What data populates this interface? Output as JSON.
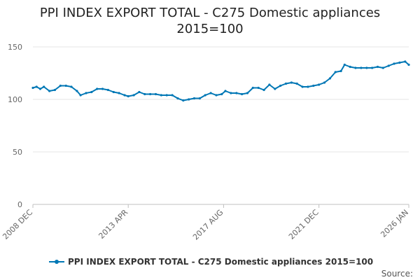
{
  "chart_data": {
    "type": "line",
    "title_lines": [
      "PPI INDEX EXPORT TOTAL - C275 Domestic appliances",
      "2015=100"
    ],
    "xlabel": "",
    "ylabel": "",
    "ylim": [
      0,
      150
    ],
    "yticks": [
      0,
      50,
      100,
      150
    ],
    "xlim": [
      "2008-12",
      "2026-01"
    ],
    "xticks": [
      {
        "date": "2008-12",
        "label": "2008 DEC"
      },
      {
        "date": "2013-04",
        "label": "2013 APR"
      },
      {
        "date": "2017-08",
        "label": "2017 AUG"
      },
      {
        "date": "2021-12",
        "label": "2021 DEC"
      },
      {
        "date": "2026-01",
        "label": "2026 JAN"
      }
    ],
    "grid": true,
    "legend_position": "bottom",
    "series": [
      {
        "name": "PPI INDEX EXPORT TOTAL - C275 Domestic appliances 2015=100",
        "color": "#0077b5",
        "points": [
          [
            "2008-12",
            111
          ],
          [
            "2009-02",
            112
          ],
          [
            "2009-04",
            110
          ],
          [
            "2009-06",
            112
          ],
          [
            "2009-09",
            108
          ],
          [
            "2009-12",
            109
          ],
          [
            "2010-03",
            113
          ],
          [
            "2010-06",
            113
          ],
          [
            "2010-09",
            112
          ],
          [
            "2010-12",
            108
          ],
          [
            "2011-02",
            104
          ],
          [
            "2011-05",
            106
          ],
          [
            "2011-08",
            107
          ],
          [
            "2011-11",
            110
          ],
          [
            "2012-02",
            110
          ],
          [
            "2012-05",
            109
          ],
          [
            "2012-08",
            107
          ],
          [
            "2012-11",
            106
          ],
          [
            "2013-02",
            104
          ],
          [
            "2013-04",
            103
          ],
          [
            "2013-07",
            104
          ],
          [
            "2013-10",
            107
          ],
          [
            "2014-01",
            105
          ],
          [
            "2014-04",
            105
          ],
          [
            "2014-07",
            105
          ],
          [
            "2014-10",
            104
          ],
          [
            "2015-01",
            104
          ],
          [
            "2015-04",
            104
          ],
          [
            "2015-07",
            101
          ],
          [
            "2015-10",
            99
          ],
          [
            "2016-01",
            100
          ],
          [
            "2016-04",
            101
          ],
          [
            "2016-07",
            101
          ],
          [
            "2016-10",
            104
          ],
          [
            "2017-01",
            106
          ],
          [
            "2017-04",
            104
          ],
          [
            "2017-07",
            105
          ],
          [
            "2017-09",
            108
          ],
          [
            "2017-12",
            106
          ],
          [
            "2018-03",
            106
          ],
          [
            "2018-06",
            105
          ],
          [
            "2018-09",
            106
          ],
          [
            "2018-12",
            111
          ],
          [
            "2019-03",
            111
          ],
          [
            "2019-06",
            109
          ],
          [
            "2019-09",
            114
          ],
          [
            "2019-12",
            110
          ],
          [
            "2020-03",
            113
          ],
          [
            "2020-06",
            115
          ],
          [
            "2020-09",
            116
          ],
          [
            "2020-12",
            115
          ],
          [
            "2021-03",
            112
          ],
          [
            "2021-06",
            112
          ],
          [
            "2021-09",
            113
          ],
          [
            "2021-12",
            114
          ],
          [
            "2022-03",
            116
          ],
          [
            "2022-06",
            120
          ],
          [
            "2022-09",
            126
          ],
          [
            "2022-12",
            127
          ],
          [
            "2023-02",
            133
          ],
          [
            "2023-05",
            131
          ],
          [
            "2023-08",
            130
          ],
          [
            "2023-11",
            130
          ],
          [
            "2024-02",
            130
          ],
          [
            "2024-05",
            130
          ],
          [
            "2024-08",
            131
          ],
          [
            "2024-11",
            130
          ],
          [
            "2025-02",
            132
          ],
          [
            "2025-05",
            134
          ],
          [
            "2025-08",
            135
          ],
          [
            "2025-11",
            136
          ],
          [
            "2026-01",
            133
          ]
        ]
      }
    ]
  },
  "source_label": "Source:"
}
